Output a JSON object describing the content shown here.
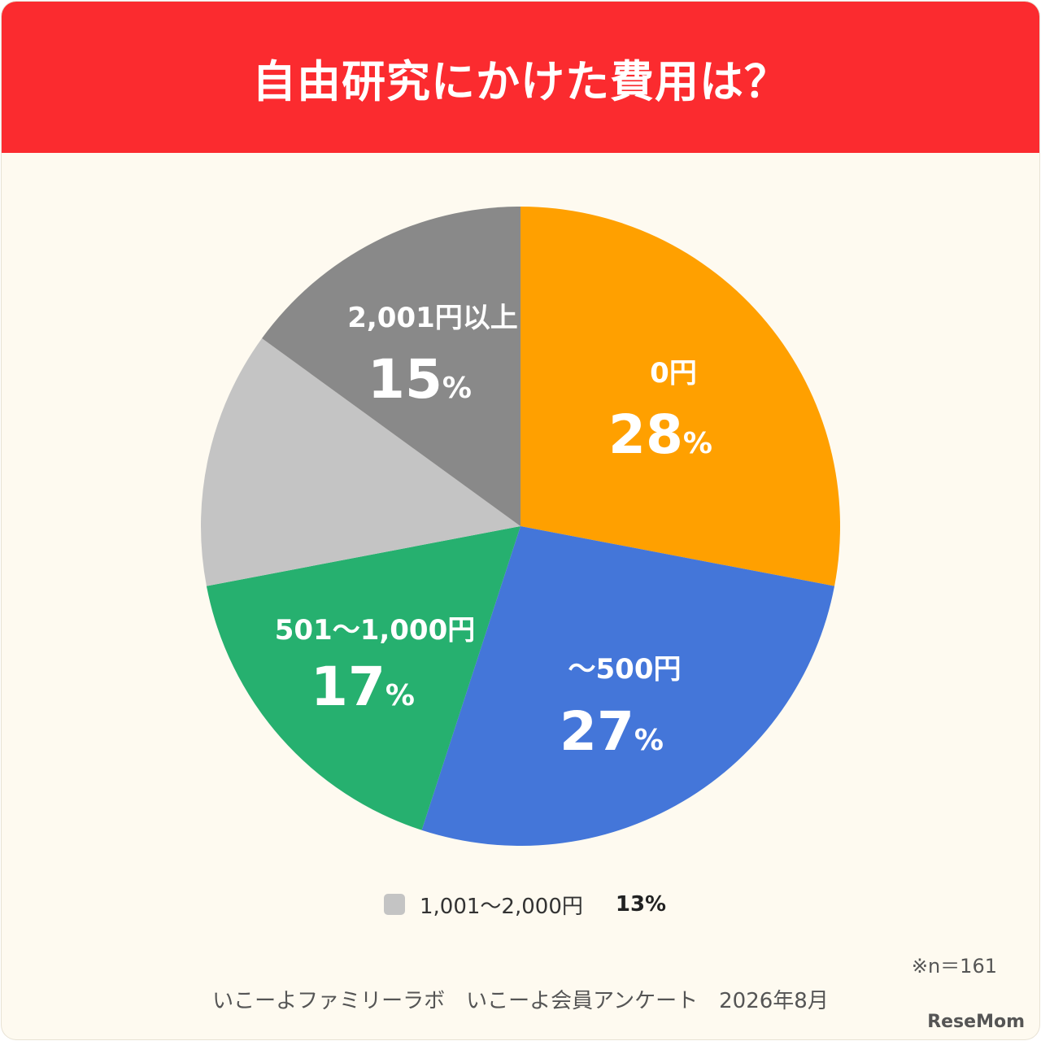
{
  "header": {
    "title": "自由研究にかけた費用は？"
  },
  "colors": {
    "header": "#fb2b2f",
    "background": "#fefaf0",
    "orange": "#ffa000",
    "blue": "#4476d9",
    "green": "#26b06f",
    "lightgray": "#c4c4c4",
    "darkgray": "#898989"
  },
  "chart_data": {
    "type": "pie",
    "start": "12 o'clock, clockwise",
    "slices": [
      {
        "label": "0円",
        "value": 28,
        "display": "28",
        "unit": "%",
        "color": "#ffa000",
        "labeled": true
      },
      {
        "label": "〜500円",
        "value": 27,
        "display": "27",
        "unit": "%",
        "color": "#4476d9",
        "labeled": true
      },
      {
        "label": "501〜1,000円",
        "value": 17,
        "display": "17",
        "unit": "%",
        "color": "#26b06f",
        "labeled": true
      },
      {
        "label": "1,001〜2,000円",
        "value": 13,
        "display": "13",
        "unit": "%",
        "color": "#c4c4c4",
        "labeled": false
      },
      {
        "label": "2,001円以上",
        "value": 15,
        "display": "15",
        "unit": "%",
        "color": "#898989",
        "labeled": true
      }
    ]
  },
  "legend": {
    "label": "1,001〜2,000円",
    "value": "13%"
  },
  "sample_note": "※n＝161",
  "source": "いこーよファミリーラボ　いこーよ会員アンケート　2026年8月",
  "logo": "ReseMom"
}
